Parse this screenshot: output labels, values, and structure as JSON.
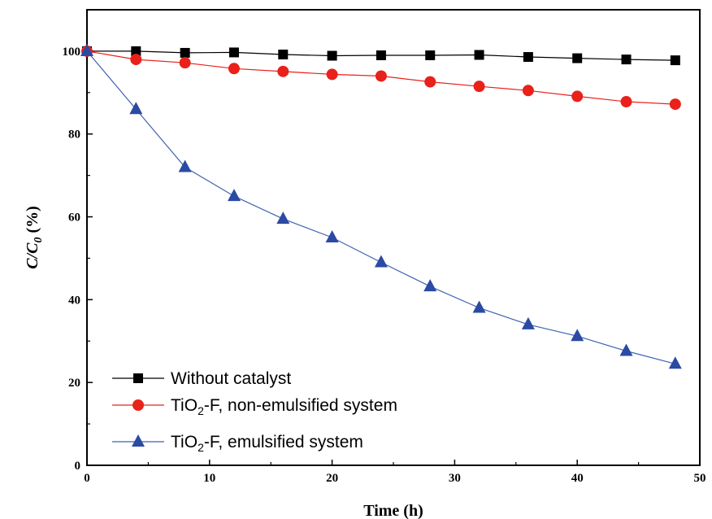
{
  "chart_data": {
    "type": "line",
    "title": "",
    "xlabel": "Time (h)",
    "ylabel": {
      "main": "C/C",
      "subscript": "0",
      "suffix": " (%)"
    },
    "xlim": [
      0,
      50
    ],
    "ylim": [
      0,
      110
    ],
    "x_ticks": [
      "0",
      "10",
      "20",
      "30",
      "40",
      "50"
    ],
    "y_ticks": [
      "0",
      "20",
      "40",
      "60",
      "80",
      "100"
    ],
    "grid": false,
    "legend_position": "bottom-left",
    "x": [
      0,
      4,
      8,
      12,
      16,
      20,
      24,
      28,
      32,
      36,
      40,
      44,
      48
    ],
    "series": [
      {
        "name": "Without catalyst",
        "legend": {
          "before": "Without catalyst",
          "sub": "",
          "after": ""
        },
        "marker": "square",
        "line_color": "#000000",
        "marker_color": "#000000",
        "values": [
          100,
          100,
          99.6,
          99.7,
          99.2,
          98.9,
          99.0,
          99.0,
          99.1,
          98.6,
          98.3,
          98.0,
          97.8
        ]
      },
      {
        "name": "TiO2-F, non-emulsified system",
        "legend": {
          "before": "TiO",
          "sub": "2",
          "after": "-F, non-emulsified system"
        },
        "marker": "circle",
        "line_color": "#e8211b",
        "marker_color": "#e8211b",
        "values": [
          100,
          98.0,
          97.2,
          95.8,
          95.1,
          94.4,
          94.0,
          92.6,
          91.5,
          90.5,
          89.1,
          87.8,
          87.2
        ]
      },
      {
        "name": "TiO2-F, emulsified system",
        "legend": {
          "before": "TiO",
          "sub": "2",
          "after": "-F, emulsified system"
        },
        "marker": "triangle",
        "line_color": "#3f62b0",
        "marker_color": "#2b4aa3",
        "values": [
          100,
          86.0,
          72.0,
          65.0,
          59.5,
          55.0,
          49.0,
          43.2,
          38.0,
          34.0,
          31.2,
          27.6,
          24.5
        ]
      }
    ]
  }
}
